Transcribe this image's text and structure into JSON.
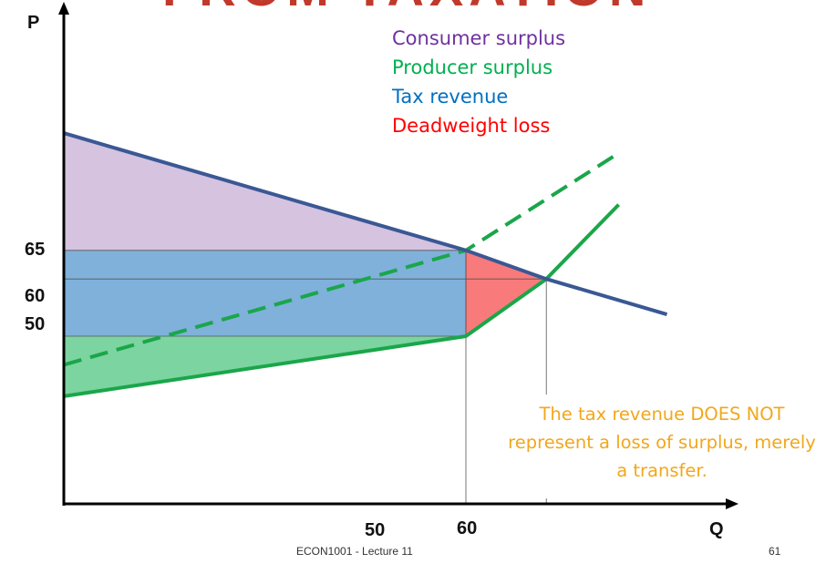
{
  "slide": {
    "title_fragment": "FROM TAXATION",
    "footer_course": "ECON1001 - Lecture 11",
    "footer_page": "61",
    "note": "The tax revenue DOES NOT represent a loss of surplus, merely a transfer."
  },
  "chart_data": {
    "type": "area",
    "xlabel": "Q",
    "ylabel": "P",
    "x_ticks": [
      50,
      60
    ],
    "y_ticks": [
      65,
      60,
      50
    ],
    "series": [
      {
        "name": "Consumer surplus",
        "color": "#7030a0"
      },
      {
        "name": "Producer surplus",
        "color": "#00b050"
      },
      {
        "name": "Tax revenue",
        "color": "#0070c0"
      },
      {
        "name": "Deadweight loss",
        "color": "#ff0000"
      }
    ],
    "demand": {
      "points": [
        [
          0,
          85.5
        ],
        [
          50,
          65
        ],
        [
          60,
          60
        ],
        [
          75,
          53.8
        ]
      ],
      "color": "#3a5894"
    },
    "supply": {
      "points": [
        [
          0,
          39.5
        ],
        [
          50,
          50
        ],
        [
          60,
          60
        ],
        [
          69,
          73
        ]
      ],
      "color": "#1aa64a"
    },
    "supply_with_tax": {
      "points": [
        [
          0,
          45
        ],
        [
          50,
          65
        ],
        [
          69,
          82
        ]
      ],
      "color": "#1aa64a",
      "style": "dashed"
    },
    "equilibrium": {
      "q": 60,
      "p": 60
    },
    "taxed": {
      "q": 50,
      "buyer_price": 65,
      "seller_price": 50
    }
  }
}
